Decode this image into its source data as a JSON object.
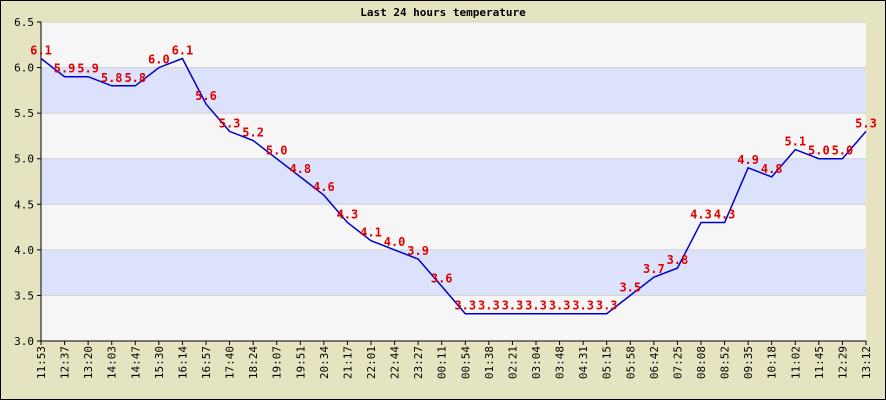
{
  "chart_data": {
    "type": "line",
    "title": "Last 24 hours temperature",
    "xlabel": "",
    "ylabel": "",
    "ylim": [
      3.0,
      6.5
    ],
    "y_ticks": [
      "3.0",
      "3.5",
      "4.0",
      "4.5",
      "5.0",
      "5.5",
      "6.0",
      "6.5"
    ],
    "grid": true,
    "band_colors": [
      "#f6f6f6",
      "#dce2fc"
    ],
    "line_color": "#0000cc",
    "label_color": "#e00000",
    "categories": [
      "11:53",
      "12:37",
      "13:20",
      "14:03",
      "14:47",
      "15:30",
      "16:14",
      "16:57",
      "17:40",
      "18:24",
      "19:07",
      "19:51",
      "20:34",
      "21:17",
      "22:01",
      "22:44",
      "23:27",
      "00:11",
      "00:54",
      "01:38",
      "02:21",
      "03:04",
      "03:48",
      "04:31",
      "05:15",
      "05:58",
      "06:42",
      "07:25",
      "08:08",
      "08:52",
      "09:35",
      "10:18",
      "11:02",
      "11:45",
      "12:29",
      "13:12"
    ],
    "series": [
      {
        "values": [
          6.1,
          5.9,
          5.9,
          5.8,
          5.8,
          6.0,
          6.1,
          5.6,
          5.3,
          5.2,
          5.0,
          4.8,
          4.6,
          4.3,
          4.1,
          4.0,
          3.9,
          3.6,
          3.3,
          3.3,
          3.3,
          3.3,
          3.3,
          3.3,
          3.3,
          3.5,
          3.7,
          3.8,
          4.3,
          4.3,
          4.9,
          4.8,
          5.1,
          5.0,
          5.0,
          5.3
        ],
        "labels": [
          "6.1",
          "5.9",
          "5.9",
          "5.8",
          "5.8",
          "6.0",
          "6.1",
          "5.6",
          "5.3",
          "5.2",
          "5.0",
          "4.8",
          "4.6",
          "4.3",
          "4.1",
          "4.0",
          "3.9",
          "3.6",
          "3.3",
          "3.3",
          "3.3",
          "3.3",
          "3.3",
          "3.3",
          "3.3",
          "3.5",
          "3.7",
          "3.8",
          "4.3",
          "4.3",
          "4.9",
          "4.8",
          "5.1",
          "5.0",
          "5.0",
          "5.3"
        ]
      }
    ]
  }
}
